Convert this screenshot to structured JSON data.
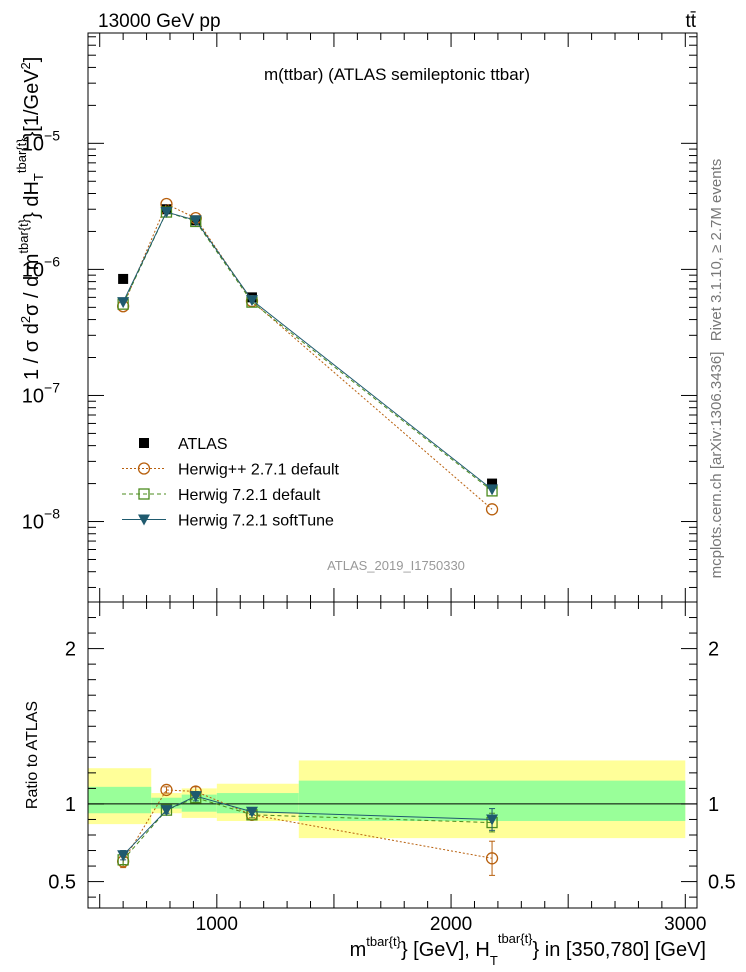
{
  "header": {
    "energy": "13000 GeV pp",
    "process": "tt̄"
  },
  "side_text": {
    "rivet": "Rivet 3.1.10, ≥ 2.7M events",
    "mcplots": "mcplots.cern.ch [arXiv:1306.3436]"
  },
  "chart_data": {
    "type": "scatter",
    "title": "m(ttbar) (ATLAS semileptonic ttbar)",
    "analysis_tag": "ATLAS_2019_I1750330",
    "xlabel": "m^{tbar{t}} [GeV], H_T^{tbar{t}} in [350,780] [GeV]",
    "xlabel_parts": {
      "m": "m",
      "sup1": "tbar{t}",
      "mid": "} [GeV], H",
      "sub": "T",
      "sup2": "tbar{t}",
      "tail": "} in [350,780] [GeV]"
    },
    "ylabel": "1 / σ d²σ / d m^{tbar{t}} dH_T^{tbar{t}} [1/GeV²]",
    "ylabel_parts": {
      "a": "1 / σ d",
      "sq1": "2",
      "b": "σ / d m",
      "sup1": "tbar{t}",
      "c": "} dH",
      "sub": "T",
      "sup2": "tbar{t}",
      "d": "}[1/GeV",
      "sq2": "2",
      "e": "]"
    },
    "ratio_ylabel": "Ratio to ATLAS",
    "xlim": [
      450,
      3050
    ],
    "ylim_main": [
      2.3e-09,
      7.5e-05
    ],
    "ylog": true,
    "ylim_ratio": [
      0.33,
      2.3
    ],
    "x_ticks": [
      {
        "value": 1000,
        "label": "1000"
      },
      {
        "value": 2000,
        "label": "2000"
      },
      {
        "value": 3000,
        "label": "3000"
      }
    ],
    "main_y_ticks": [
      {
        "value": 1e-08,
        "base": "10",
        "exp": "−8"
      },
      {
        "value": 1e-07,
        "base": "10",
        "exp": "−7"
      },
      {
        "value": 1e-06,
        "base": "10",
        "exp": "−6"
      },
      {
        "value": 1e-05,
        "base": "10",
        "exp": "−5"
      }
    ],
    "ratio_y_ticks": [
      {
        "value": 0.5,
        "label": "0.5"
      },
      {
        "value": 1,
        "label": "1"
      },
      {
        "value": 2,
        "label": "2"
      }
    ],
    "bins": [
      [
        450,
        720
      ],
      [
        720,
        850
      ],
      [
        850,
        1000
      ],
      [
        1000,
        1350
      ],
      [
        1350,
        3000
      ]
    ],
    "ratio_band_yellow": [
      [
        0.87,
        1.23
      ],
      [
        0.94,
        1.07
      ],
      [
        0.91,
        1.1
      ],
      [
        0.89,
        1.13
      ],
      [
        0.78,
        1.28
      ]
    ],
    "ratio_band_green": [
      [
        0.94,
        1.11
      ],
      [
        0.97,
        1.04
      ],
      [
        0.95,
        1.06
      ],
      [
        0.94,
        1.07
      ],
      [
        0.89,
        1.15
      ]
    ],
    "legend_position": "lower-left",
    "series": [
      {
        "name": "ATLAS",
        "color": "#000000",
        "marker": "square-filled",
        "line": "none",
        "x": [
          600,
          785,
          910,
          1150,
          2175
        ],
        "y": [
          8.4e-07,
          3e-06,
          2.45e-06,
          6e-07,
          2e-08
        ]
      },
      {
        "name": "Herwig++ 2.7.1 default",
        "color": "#b8600e",
        "marker": "circle-open",
        "line": "dotted",
        "x": [
          600,
          785,
          910,
          1150,
          2175
        ],
        "y": [
          5.1e-07,
          3.3e-06,
          2.55e-06,
          5.6e-07,
          1.25e-08
        ],
        "ratio": [
          0.63,
          1.09,
          1.08,
          0.93,
          0.65
        ],
        "ratio_err": [
          0.04,
          0.02,
          0.03,
          0.02,
          0.11
        ]
      },
      {
        "name": "Herwig 7.2.1 default",
        "color": "#4b8b1e",
        "marker": "square-open",
        "line": "dashed",
        "x": [
          600,
          785,
          910,
          1150,
          2175
        ],
        "y": [
          5.3e-07,
          2.85e-06,
          2.4e-06,
          5.5e-07,
          1.75e-08
        ],
        "ratio": [
          0.64,
          0.96,
          1.04,
          0.93,
          0.88
        ],
        "ratio_err": [
          0.03,
          0.02,
          0.03,
          0.02,
          0.06
        ]
      },
      {
        "name": "Herwig 7.2.1 softTune",
        "color": "#1f5a6e",
        "marker": "triangle-down-filled",
        "line": "solid",
        "x": [
          600,
          785,
          910,
          1150,
          2175
        ],
        "y": [
          5.5e-07,
          2.85e-06,
          2.45e-06,
          5.7e-07,
          1.8e-08
        ],
        "ratio": [
          0.67,
          0.96,
          1.05,
          0.95,
          0.9
        ],
        "ratio_err": [
          0.03,
          0.02,
          0.03,
          0.02,
          0.07
        ]
      }
    ]
  }
}
